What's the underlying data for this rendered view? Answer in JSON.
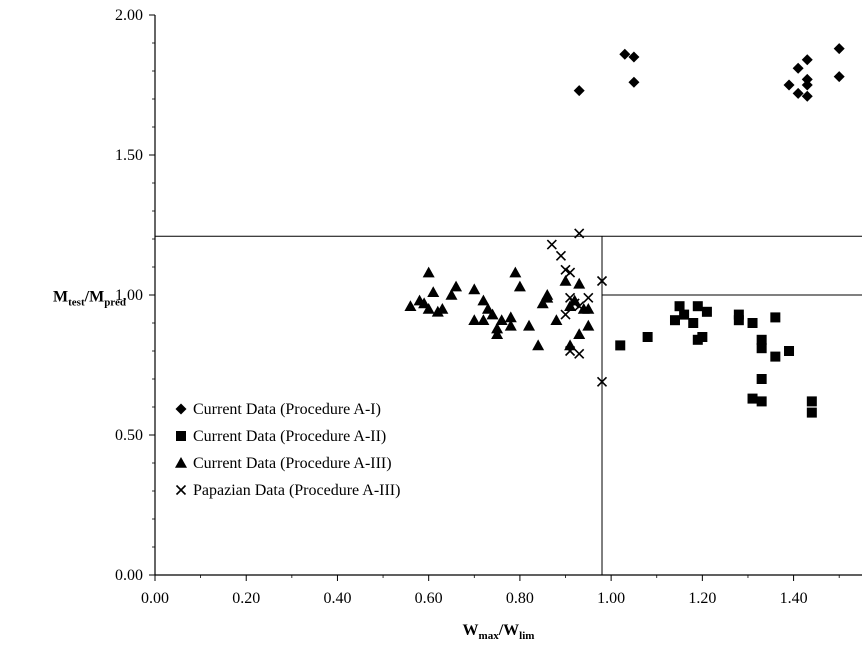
{
  "chart_data": {
    "type": "scatter",
    "xlabel": {
      "main": "W",
      "sub1": "max",
      "sep": "/W",
      "sub2": "lim"
    },
    "ylabel": {
      "main": "M",
      "sub1": "test",
      "sep": "/M",
      "sub2": "pred"
    },
    "xlim": [
      0.0,
      1.55
    ],
    "ylim": [
      0.0,
      2.0
    ],
    "x_ticks": [
      "0.00",
      "0.20",
      "0.40",
      "0.60",
      "0.80",
      "1.00",
      "1.20",
      "1.40"
    ],
    "y_ticks": [
      "0.00",
      "0.50",
      "1.00",
      "1.50",
      "2.00"
    ],
    "grid": false,
    "legend_position": "bottom-left",
    "reference_lines": [
      {
        "orientation": "horizontal",
        "y": 1.21,
        "x_from": 0.0,
        "x_to": 1.55
      },
      {
        "orientation": "horizontal",
        "y": 1.0,
        "x_from": 0.98,
        "x_to": 1.55
      },
      {
        "orientation": "vertical",
        "x": 0.98,
        "y_from": 0.0,
        "y_to": 1.21
      }
    ],
    "series": [
      {
        "name": "Current Data (Procedure A-I)",
        "marker": "diamond",
        "points": [
          [
            0.93,
            1.73
          ],
          [
            1.03,
            1.86
          ],
          [
            1.05,
            1.85
          ],
          [
            1.05,
            1.76
          ],
          [
            1.39,
            1.75
          ],
          [
            1.41,
            1.81
          ],
          [
            1.41,
            1.72
          ],
          [
            1.43,
            1.84
          ],
          [
            1.43,
            1.77
          ],
          [
            1.43,
            1.75
          ],
          [
            1.43,
            1.71
          ],
          [
            1.5,
            1.88
          ],
          [
            1.5,
            1.78
          ]
        ]
      },
      {
        "name": "Current Data (Procedure A-II)",
        "marker": "square",
        "points": [
          [
            1.02,
            0.82
          ],
          [
            1.08,
            0.85
          ],
          [
            1.14,
            0.91
          ],
          [
            1.15,
            0.96
          ],
          [
            1.16,
            0.93
          ],
          [
            1.18,
            0.9
          ],
          [
            1.19,
            0.96
          ],
          [
            1.2,
            0.85
          ],
          [
            1.19,
            0.84
          ],
          [
            1.21,
            0.94
          ],
          [
            1.28,
            0.93
          ],
          [
            1.28,
            0.91
          ],
          [
            1.31,
            0.9
          ],
          [
            1.33,
            0.84
          ],
          [
            1.33,
            0.81
          ],
          [
            1.36,
            0.92
          ],
          [
            1.36,
            0.78
          ],
          [
            1.39,
            0.8
          ],
          [
            1.33,
            0.7
          ],
          [
            1.31,
            0.63
          ],
          [
            1.33,
            0.62
          ],
          [
            1.44,
            0.62
          ],
          [
            1.44,
            0.58
          ]
        ]
      },
      {
        "name": "Current Data (Procedure A-III)",
        "marker": "triangle",
        "points": [
          [
            0.56,
            0.96
          ],
          [
            0.58,
            0.98
          ],
          [
            0.59,
            0.97
          ],
          [
            0.6,
            1.08
          ],
          [
            0.6,
            0.95
          ],
          [
            0.61,
            1.01
          ],
          [
            0.62,
            0.94
          ],
          [
            0.63,
            0.95
          ],
          [
            0.65,
            1.0
          ],
          [
            0.66,
            1.03
          ],
          [
            0.7,
            1.02
          ],
          [
            0.7,
            0.91
          ],
          [
            0.72,
            0.91
          ],
          [
            0.72,
            0.98
          ],
          [
            0.73,
            0.95
          ],
          [
            0.74,
            0.93
          ],
          [
            0.75,
            0.88
          ],
          [
            0.75,
            0.86
          ],
          [
            0.76,
            0.91
          ],
          [
            0.78,
            0.92
          ],
          [
            0.78,
            0.89
          ],
          [
            0.79,
            1.08
          ],
          [
            0.8,
            1.03
          ],
          [
            0.82,
            0.89
          ],
          [
            0.84,
            0.82
          ],
          [
            0.85,
            0.97
          ],
          [
            0.86,
            0.99
          ],
          [
            0.86,
            1.0
          ],
          [
            0.88,
            0.91
          ],
          [
            0.9,
            1.05
          ],
          [
            0.91,
            0.82
          ],
          [
            0.91,
            0.96
          ],
          [
            0.92,
            0.98
          ],
          [
            0.93,
            1.04
          ],
          [
            0.93,
            0.86
          ],
          [
            0.94,
            0.95
          ],
          [
            0.95,
            0.89
          ],
          [
            0.95,
            0.95
          ]
        ]
      },
      {
        "name": "Papazian Data (Procedure A-III)",
        "marker": "x",
        "points": [
          [
            0.87,
            1.18
          ],
          [
            0.89,
            1.14
          ],
          [
            0.9,
            1.09
          ],
          [
            0.91,
            1.08
          ],
          [
            0.93,
            1.22
          ],
          [
            0.91,
            0.99
          ],
          [
            0.92,
            0.97
          ],
          [
            0.93,
            0.96
          ],
          [
            0.95,
            0.99
          ],
          [
            0.9,
            0.93
          ],
          [
            0.91,
            0.8
          ],
          [
            0.93,
            0.79
          ],
          [
            0.98,
            1.05
          ],
          [
            0.98,
            0.69
          ]
        ]
      }
    ]
  }
}
